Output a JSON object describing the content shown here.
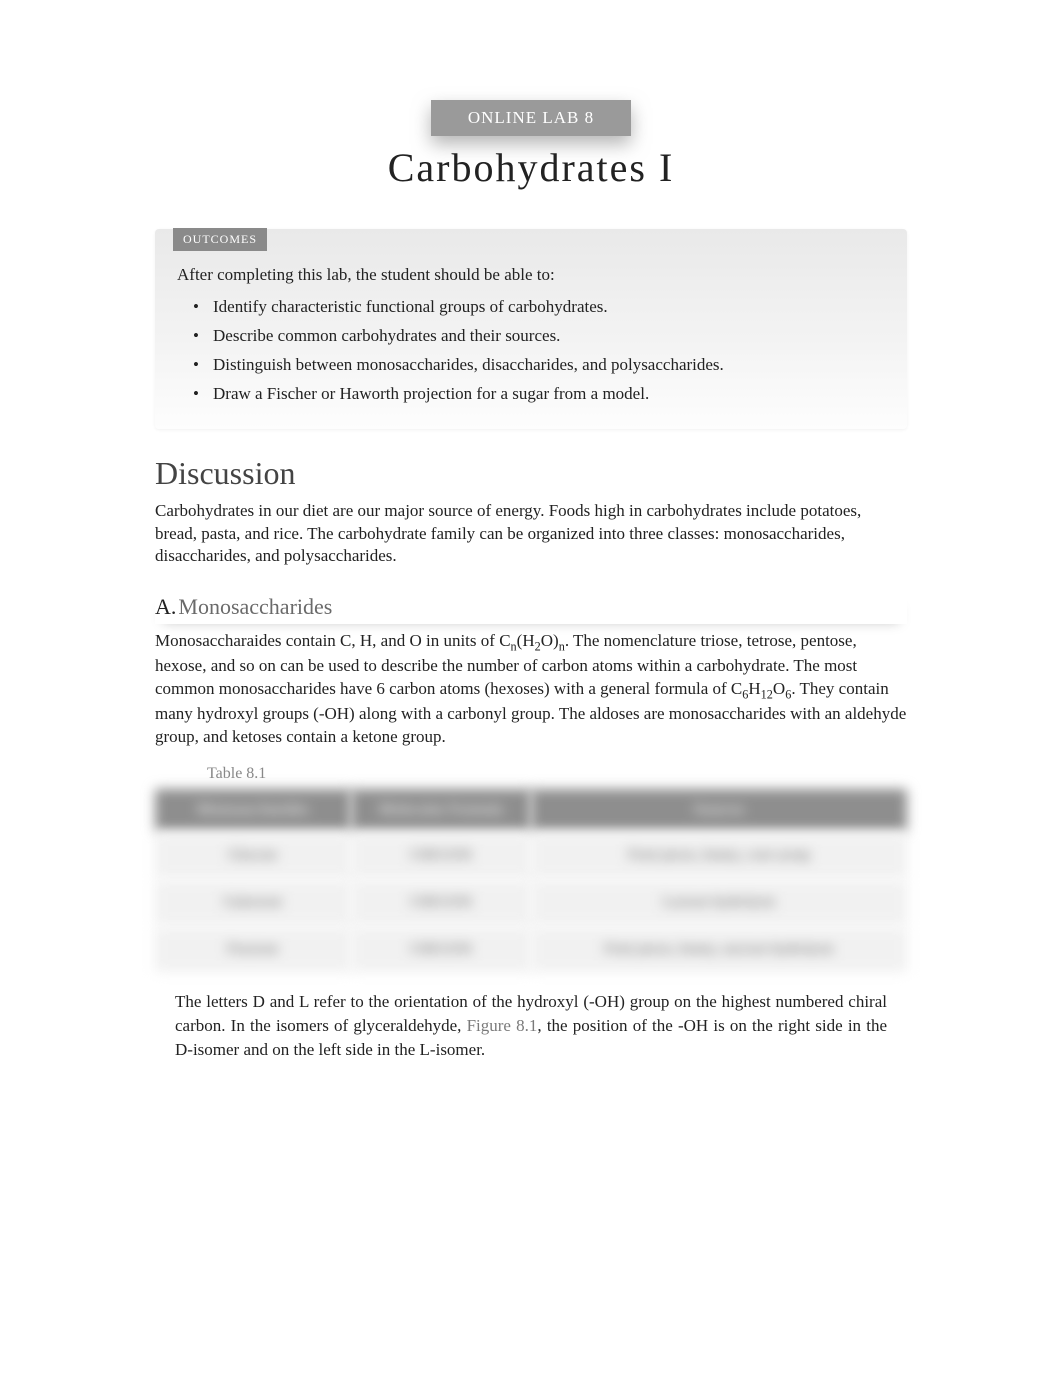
{
  "badge": "ONLINE LAB 8",
  "title": "Carbohydrates I",
  "outcomes": {
    "tab": "OUTCOMES",
    "lead": "After completing this lab, the student should be able to:",
    "items": [
      "Identify characteristic functional groups of carbohydrates.",
      "Describe common carbohydrates and their sources.",
      "Distinguish between monosaccharides, disaccharides, and polysaccharides.",
      "Draw a Fischer or Haworth projection for a sugar from a model."
    ]
  },
  "discussion": {
    "heading": "Discussion",
    "para": "Carbohydrates in our diet are our major source of energy. Foods high in carbohydrates include potatoes, bread, pasta, and rice. The carbohydrate family can be organized into three classes: monosaccharides, disaccharides, and polysaccharides."
  },
  "sectionA": {
    "letter": "A.",
    "title": "Monosaccharides",
    "para_before": "Monosaccharaides contain C, H, and O in units of ",
    "formula1_parts": {
      "a": "C",
      "b": "n",
      "c": "(H",
      "d": "2",
      "e": "O)",
      "f": "n"
    },
    "para_mid": ". The nomenclature triose, tetrose, pentose, hexose, and so on can be used to describe the number of carbon atoms within a carbohydrate. The most common monosaccharides have 6 carbon atoms (hexoses) with a general formula of ",
    "formula2_parts": {
      "a": "C",
      "b": "6",
      "c": "H",
      "d": "12",
      "e": "O",
      "f": "6"
    },
    "para_after": ". They contain many hydroxyl groups (-OH) along with a carbonyl group. The aldoses are monosaccharides with an aldehyde group, and ketoses contain a ketone group."
  },
  "table": {
    "caption": "Table 8.1",
    "columns": [
      "Monosaccharides",
      "Molecular Formula",
      "Sources"
    ],
    "rows": [
      [
        "Glucose",
        "C6H12O6",
        "Fruit juices, honey, corn syrup"
      ],
      [
        "Galactose",
        "C6H12O6",
        "Lactose hydrolysis"
      ],
      [
        "Fructose",
        "C6H12O6",
        "Fruit juices, honey, sucrose hydrolysis"
      ]
    ]
  },
  "afterTable": {
    "text_before": "The letters D and L refer to the orientation of the hydroxyl (-OH) group on the highest numbered chiral carbon. In the isomers of glyceraldehyde, ",
    "figure_ref": "Figure 8.1",
    "text_after": ", the position of the -OH is on the right side in the D-isomer and on the left side in the L-isomer."
  }
}
